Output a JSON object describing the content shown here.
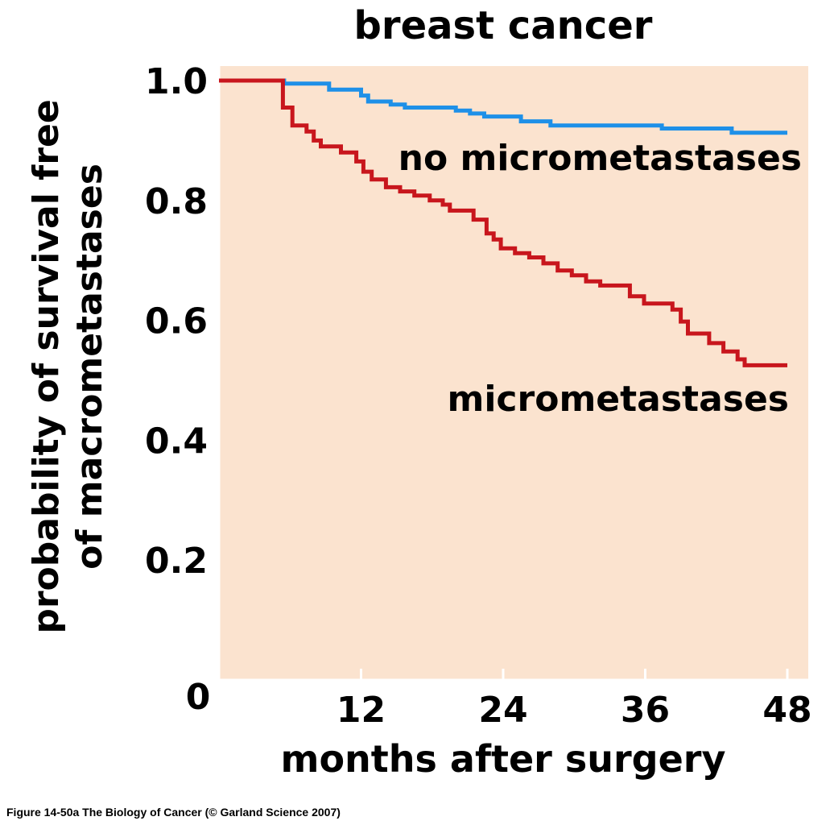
{
  "caption": "Figure 14-50a  The Biology of Cancer (© Garland Science 2007)",
  "chart_data": {
    "type": "line",
    "title": "breast cancer",
    "xlabel": "months after surgery",
    "ylabel_line1": "probability of survival free",
    "ylabel_line2": "of macrometastases",
    "xlim": [
      0,
      48
    ],
    "ylim": [
      0,
      1.0
    ],
    "x_ticks": [
      12,
      24,
      36,
      48
    ],
    "x_tick_labels": [
      "12",
      "24",
      "36",
      "48"
    ],
    "y_ticks": [
      0.2,
      0.4,
      0.6,
      0.8,
      1.0
    ],
    "y_tick_labels": [
      "0.2",
      "0.4",
      "0.6",
      "0.8",
      "1.0"
    ],
    "origin_label": "0",
    "background": "#fbe3cf",
    "grid": false,
    "step": true,
    "series": [
      {
        "name": "no micrometastases",
        "color": "#1e90e8",
        "points": [
          [
            0,
            1.0
          ],
          [
            5.5,
            1.0
          ],
          [
            5.5,
            0.995
          ],
          [
            9.3,
            0.995
          ],
          [
            9.3,
            0.985
          ],
          [
            12.0,
            0.985
          ],
          [
            12.0,
            0.975
          ],
          [
            12.6,
            0.975
          ],
          [
            12.6,
            0.965
          ],
          [
            14.5,
            0.965
          ],
          [
            14.5,
            0.96
          ],
          [
            15.7,
            0.96
          ],
          [
            15.7,
            0.955
          ],
          [
            20.0,
            0.955
          ],
          [
            20.0,
            0.95
          ],
          [
            21.2,
            0.95
          ],
          [
            21.2,
            0.945
          ],
          [
            22.4,
            0.945
          ],
          [
            22.4,
            0.94
          ],
          [
            25.5,
            0.94
          ],
          [
            25.5,
            0.932
          ],
          [
            28.0,
            0.932
          ],
          [
            28.0,
            0.925
          ],
          [
            37.4,
            0.925
          ],
          [
            37.4,
            0.92
          ],
          [
            43.3,
            0.92
          ],
          [
            43.3,
            0.913
          ],
          [
            48,
            0.913
          ]
        ]
      },
      {
        "name": "micrometastases",
        "color": "#c8161d",
        "points": [
          [
            0,
            1.0
          ],
          [
            5.4,
            1.0
          ],
          [
            5.4,
            0.955
          ],
          [
            6.2,
            0.955
          ],
          [
            6.2,
            0.925
          ],
          [
            7.4,
            0.925
          ],
          [
            7.4,
            0.915
          ],
          [
            8.0,
            0.915
          ],
          [
            8.0,
            0.9
          ],
          [
            8.6,
            0.9
          ],
          [
            8.6,
            0.89
          ],
          [
            10.3,
            0.89
          ],
          [
            10.3,
            0.88
          ],
          [
            11.6,
            0.88
          ],
          [
            11.6,
            0.865
          ],
          [
            12.2,
            0.865
          ],
          [
            12.2,
            0.848
          ],
          [
            12.9,
            0.848
          ],
          [
            12.9,
            0.835
          ],
          [
            14.1,
            0.835
          ],
          [
            14.1,
            0.822
          ],
          [
            15.3,
            0.822
          ],
          [
            15.3,
            0.815
          ],
          [
            16.5,
            0.815
          ],
          [
            16.5,
            0.808
          ],
          [
            17.8,
            0.808
          ],
          [
            17.8,
            0.8
          ],
          [
            18.9,
            0.8
          ],
          [
            18.9,
            0.793
          ],
          [
            19.5,
            0.793
          ],
          [
            19.5,
            0.783
          ],
          [
            21.5,
            0.783
          ],
          [
            21.5,
            0.768
          ],
          [
            22.6,
            0.768
          ],
          [
            22.6,
            0.745
          ],
          [
            23.2,
            0.745
          ],
          [
            23.2,
            0.735
          ],
          [
            23.8,
            0.735
          ],
          [
            23.8,
            0.72
          ],
          [
            25.0,
            0.72
          ],
          [
            25.0,
            0.712
          ],
          [
            26.2,
            0.712
          ],
          [
            26.2,
            0.705
          ],
          [
            27.4,
            0.705
          ],
          [
            27.4,
            0.695
          ],
          [
            28.6,
            0.695
          ],
          [
            28.6,
            0.683
          ],
          [
            29.8,
            0.683
          ],
          [
            29.8,
            0.675
          ],
          [
            31.0,
            0.675
          ],
          [
            31.0,
            0.665
          ],
          [
            32.2,
            0.665
          ],
          [
            32.2,
            0.658
          ],
          [
            34.7,
            0.658
          ],
          [
            34.7,
            0.64
          ],
          [
            35.9,
            0.64
          ],
          [
            35.9,
            0.628
          ],
          [
            38.3,
            0.628
          ],
          [
            38.3,
            0.618
          ],
          [
            39.0,
            0.618
          ],
          [
            39.0,
            0.598
          ],
          [
            39.6,
            0.598
          ],
          [
            39.6,
            0.578
          ],
          [
            41.4,
            0.578
          ],
          [
            41.4,
            0.562
          ],
          [
            42.6,
            0.562
          ],
          [
            42.6,
            0.548
          ],
          [
            43.8,
            0.548
          ],
          [
            43.8,
            0.535
          ],
          [
            44.4,
            0.535
          ],
          [
            44.4,
            0.525
          ],
          [
            48,
            0.525
          ]
        ]
      }
    ]
  }
}
